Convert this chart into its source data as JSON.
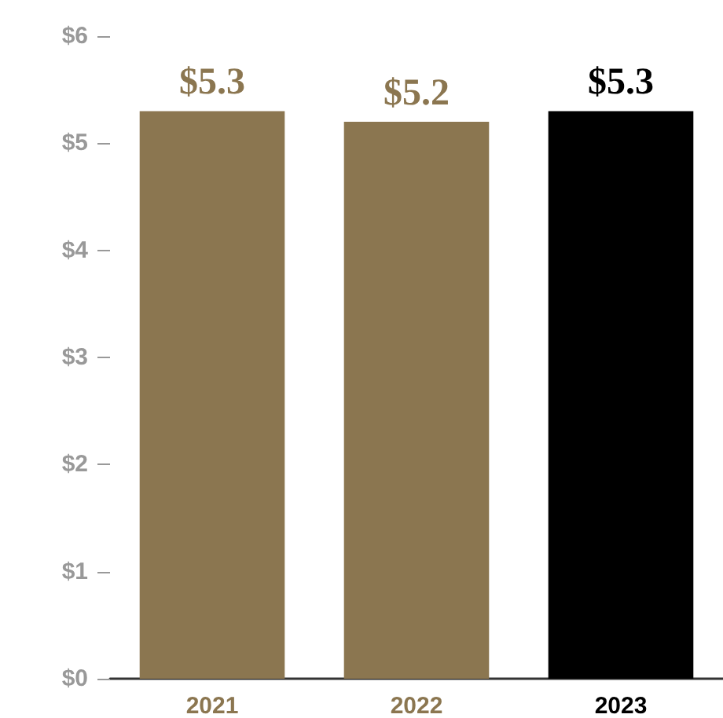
{
  "chart_data": {
    "type": "bar",
    "categories": [
      "2021",
      "2022",
      "2023"
    ],
    "values": [
      5.3,
      5.2,
      5.3
    ],
    "colors": [
      "#8b7650",
      "#8b7650",
      "#000000"
    ],
    "value_labels": [
      "$5.3",
      "$5.2",
      "$5.3"
    ],
    "ylim": [
      0,
      6
    ],
    "yticks": [
      {
        "value": 0,
        "label": "$0"
      },
      {
        "value": 1,
        "label": "$1"
      },
      {
        "value": 2,
        "label": "$2"
      },
      {
        "value": 3,
        "label": "$3"
      },
      {
        "value": 4,
        "label": "$4"
      },
      {
        "value": 5,
        "label": "$5"
      },
      {
        "value": 6,
        "label": "$6"
      }
    ],
    "grid": false
  }
}
